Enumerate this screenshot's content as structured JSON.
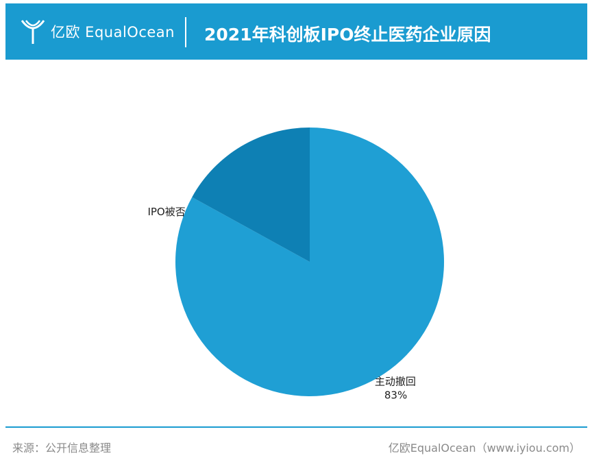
{
  "header": {
    "logo_text": "亿欧 EqualOcean",
    "title": "2021年科创板IPO终止医药企业原因"
  },
  "chart_data": {
    "type": "pie",
    "slices": [
      {
        "label": "主动撤回",
        "value": 83,
        "value_label": "83%",
        "color": "#1f9fd4"
      },
      {
        "label": "IPO被否",
        "value": 17,
        "value_label": "",
        "color": "#0e80b4"
      }
    ]
  },
  "footer": {
    "source": "来源：公开信息整理",
    "credit": "亿欧EqualOcean（www.iyiou.com）"
  },
  "colors": {
    "brand": "#1a9bd0"
  }
}
